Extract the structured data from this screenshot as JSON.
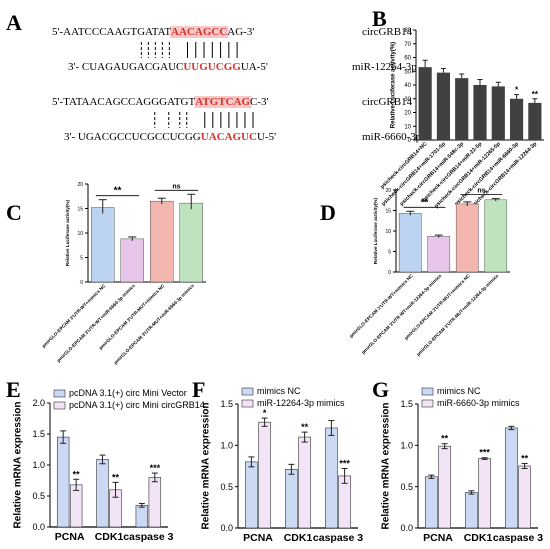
{
  "panels": {
    "A": {
      "letter": "A",
      "pairs": [
        {
          "top_prefix": "5'-AATCCCAAGTGATAT",
          "top_site": "AACAGCC",
          "top_suffix": "AG-3'",
          "top_label": "circGRB14",
          "bottom_prefix": "3'- CUAGAUGACGAUC",
          "bottom_site": "UUGUCGG",
          "bottom_suffix": "UA-5'",
          "bottom_label": "miR-12264-3p"
        },
        {
          "top_prefix": "5'-TATAACAGCCAGGGATGT",
          "top_site": "ATGTCAG",
          "top_suffix": "C-3'",
          "top_label": "circGRB14",
          "bottom_prefix": "3'- UGACGCCUCGCCUCGG",
          "bottom_site": "UACAGUC",
          "bottom_suffix": "U-5'",
          "bottom_label": "miR-6660-3p"
        }
      ]
    },
    "B": {
      "letter": "B"
    },
    "C": {
      "letter": "C"
    },
    "D": {
      "letter": "D"
    },
    "E": {
      "letter": "E"
    },
    "F": {
      "letter": "F"
    },
    "G": {
      "letter": "G"
    }
  },
  "colors": {
    "site_red": "#d9322b",
    "site_bg": "#f6c9c9",
    "dark_bar": "#404040",
    "blue_fill": "#bcd3f2",
    "pink_fill": "#e8c6ea",
    "salmon_fill": "#f4b7b0",
    "green_fill": "#bfe3be",
    "light_blue_fill": "#cbd9f5",
    "light_pink_fill": "#f3e3f6",
    "edge": "#333333"
  },
  "chart_data": [
    {
      "panel": "B",
      "type": "bar",
      "ylabel": "Relative Luciferase activity(%)",
      "ylim": [
        0,
        80
      ],
      "yticks": [
        "0",
        "10",
        "20",
        "30",
        "40",
        "50",
        "60",
        "70",
        "80"
      ],
      "categories": [
        "psicheck-circGRB14+NC",
        "psicheck-circGRB14+miR-1701-5p",
        "psicheck-circGRB14+miR-548c-3p",
        "psicheck-circGRB14+miR-22-5p",
        "psicheck-circGRB14+miR-12265-5p",
        "psicheck-circGRB14+miR-6660-3p",
        "psicheck-circGRB14+miR-12264-3p"
      ],
      "values": [
        53,
        49,
        45,
        40,
        39,
        30,
        27
      ],
      "errors": [
        5,
        3,
        3,
        4,
        3,
        3,
        3
      ],
      "significance": [
        "",
        "",
        "",
        "",
        "",
        "*",
        "**"
      ]
    },
    {
      "panel": "C",
      "type": "bar",
      "ylabel": "Relative Luciferase activity(%)",
      "ylim": [
        0,
        20
      ],
      "yticks": [
        "0",
        "5",
        "10",
        "15",
        "20"
      ],
      "categories": [
        "pmirGLO-EPCAM 3'UTR-WT+mimics NC",
        "pmirGLO-EPCAM 3'UTR-WT+miR-6660-3p mimics",
        "pmirGLO-EPCAM 3'UTR-MUT+mimics NC",
        "pmirGLO-EPCAM 3'UTR-MUT+miR-6660-3p mimics"
      ],
      "values": [
        15.2,
        8.8,
        16.5,
        16.1
      ],
      "errors": [
        1.6,
        0.4,
        0.6,
        1.8
      ],
      "brackets": [
        {
          "from": 0,
          "to": 1,
          "label": "**"
        },
        {
          "from": 2,
          "to": 3,
          "label": "ns"
        }
      ]
    },
    {
      "panel": "D",
      "type": "bar",
      "ylabel": "Relative Luciferase activity(%)",
      "ylim": [
        0,
        20
      ],
      "yticks": [
        "0",
        "5",
        "10",
        "15",
        "20"
      ],
      "categories": [
        "pmirGLO-EPCAM 3'UTR-WT+mimics NC",
        "pmirGLO-EPCAM 3'UTR-WT+miR-12264-3p mimics",
        "pmirGLO-EPCAM 3'UTR-MUT+mimics NC",
        "pmirGLO-EPCAM 3'UTR-MUT+miR-12264-3p mimics"
      ],
      "values": [
        14.3,
        8.7,
        16.6,
        17.6
      ],
      "errors": [
        0.5,
        0.3,
        0.5,
        0.3
      ],
      "brackets": [
        {
          "from": 0,
          "to": 1,
          "label": "**"
        },
        {
          "from": 2,
          "to": 3,
          "label": "ns"
        }
      ]
    },
    {
      "panel": "E",
      "type": "bar",
      "ylabel": "Relative mRNA expression",
      "ylim": [
        0,
        2.0
      ],
      "yticks": [
        "0.0",
        "0.5",
        "1.0",
        "1.5",
        "2.0"
      ],
      "categories": [
        "PCNA",
        "CDK1",
        "caspase 3"
      ],
      "series": [
        {
          "name": "pcDNA 3.1(+) circ Mini Vector",
          "values": [
            1.45,
            1.09,
            0.35
          ],
          "errors": [
            0.1,
            0.07,
            0.03
          ],
          "significance": [
            "",
            "",
            ""
          ]
        },
        {
          "name": "pcDNA 3.1(+) circ Mini circGRB14",
          "values": [
            0.68,
            0.6,
            0.8
          ],
          "errors": [
            0.09,
            0.12,
            0.07
          ],
          "significance": [
            "**",
            "**",
            "***"
          ]
        }
      ]
    },
    {
      "panel": "F",
      "type": "bar",
      "ylabel": "Relative mRNA expression",
      "ylim": [
        0,
        1.5
      ],
      "yticks": [
        "0.0",
        "0.5",
        "1.0",
        "1.5"
      ],
      "categories": [
        "PCNA",
        "CDK1",
        "caspase 3"
      ],
      "series": [
        {
          "name": "mimics NC",
          "values": [
            0.8,
            0.71,
            1.21
          ],
          "errors": [
            0.06,
            0.06,
            0.09
          ],
          "significance": [
            "",
            "",
            ""
          ]
        },
        {
          "name": "miR-12264-3p mimics",
          "values": [
            1.28,
            1.1,
            0.63
          ],
          "errors": [
            0.05,
            0.06,
            0.09
          ],
          "significance": [
            "*",
            "**",
            "***"
          ]
        }
      ]
    },
    {
      "panel": "G",
      "type": "bar",
      "ylabel": "Relative mRNA expression",
      "ylim": [
        0,
        1.5
      ],
      "yticks": [
        "0.0",
        "0.5",
        "1.0",
        "1.5"
      ],
      "categories": [
        "PCNA",
        "CDK1",
        "caspase 3"
      ],
      "series": [
        {
          "name": "mimics NC",
          "values": [
            0.62,
            0.43,
            1.21
          ],
          "errors": [
            0.02,
            0.02,
            0.02
          ],
          "significance": [
            "",
            "",
            ""
          ]
        },
        {
          "name": "miR-6660-3p mimics",
          "values": [
            0.99,
            0.84,
            0.75
          ],
          "errors": [
            0.03,
            0.01,
            0.03
          ],
          "significance": [
            "**",
            "***",
            "**"
          ]
        }
      ]
    }
  ]
}
